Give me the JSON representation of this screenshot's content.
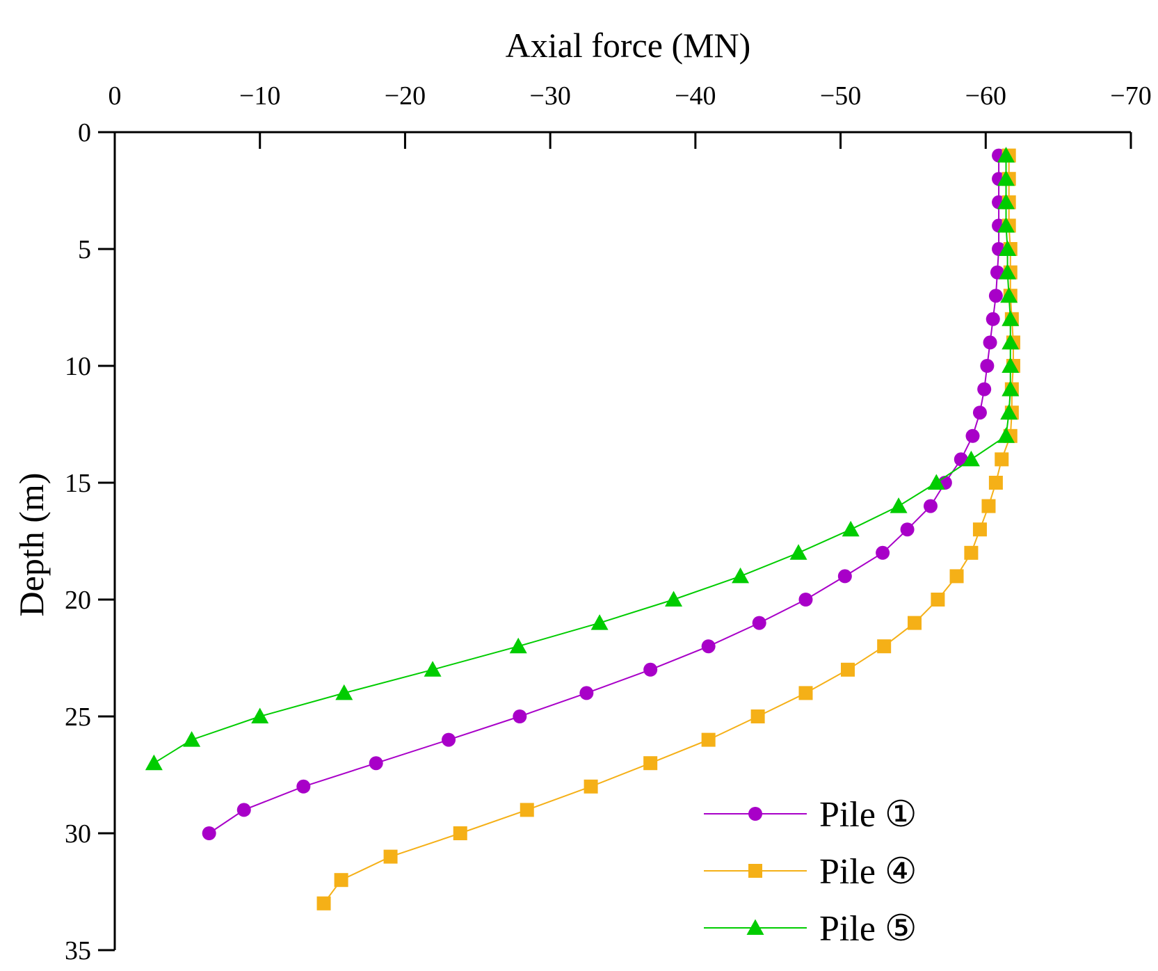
{
  "chart_data": {
    "type": "line",
    "title": "",
    "xlabel": "Axial force (MN)",
    "ylabel": "Depth (m)",
    "xlim": [
      0,
      -70
    ],
    "ylim": [
      0,
      35
    ],
    "x_axis_position": "top",
    "y_axis_inverted": true,
    "grid": false,
    "legend_position": "bottom-right",
    "x_ticks": [
      0,
      -10,
      -20,
      -30,
      -40,
      -50,
      -60,
      -70
    ],
    "x_tick_labels": [
      "0",
      "−10",
      "−20",
      "−30",
      "−40",
      "−50",
      "−60",
      "−70"
    ],
    "y_ticks": [
      0,
      5,
      10,
      15,
      20,
      25,
      30,
      35
    ],
    "y_tick_labels": [
      "0",
      "5",
      "10",
      "15",
      "20",
      "25",
      "30",
      "35"
    ],
    "series": [
      {
        "name": "Pile ①",
        "color": "#a800c8",
        "marker": "circle",
        "depth": [
          1,
          2,
          3,
          4,
          5,
          6,
          7,
          8,
          9,
          10,
          11,
          12,
          13,
          14,
          15,
          16,
          17,
          18,
          19,
          20,
          21,
          22,
          23,
          24,
          25,
          26,
          27,
          28,
          29,
          30
        ],
        "force": [
          -60.9,
          -60.9,
          -60.9,
          -60.9,
          -60.9,
          -60.8,
          -60.7,
          -60.5,
          -60.3,
          -60.1,
          -59.9,
          -59.6,
          -59.1,
          -58.3,
          -57.2,
          -56.2,
          -54.6,
          -52.9,
          -50.3,
          -47.6,
          -44.4,
          -40.9,
          -36.9,
          -32.5,
          -27.9,
          -23.0,
          -18.0,
          -13.0,
          -8.9,
          -6.5
        ]
      },
      {
        "name": "Pile ④",
        "color": "#f5b017",
        "marker": "square",
        "depth": [
          1,
          2,
          3,
          4,
          5,
          6,
          7,
          8,
          9,
          10,
          11,
          12,
          13,
          14,
          15,
          16,
          17,
          18,
          19,
          20,
          21,
          22,
          23,
          24,
          25,
          26,
          27,
          28,
          29,
          30,
          31,
          32,
          33
        ],
        "force": [
          -61.6,
          -61.6,
          -61.6,
          -61.6,
          -61.7,
          -61.7,
          -61.7,
          -61.8,
          -61.9,
          -61.9,
          -61.8,
          -61.8,
          -61.7,
          -61.1,
          -60.7,
          -60.2,
          -59.6,
          -59.0,
          -58.0,
          -56.7,
          -55.1,
          -53.0,
          -50.5,
          -47.6,
          -44.3,
          -40.9,
          -36.9,
          -32.8,
          -28.4,
          -23.8,
          -19.0,
          -15.6,
          -14.4
        ]
      },
      {
        "name": "Pile ⑤",
        "color": "#00cc00",
        "marker": "triangle",
        "depth": [
          1,
          2,
          3,
          4,
          5,
          6,
          7,
          8,
          9,
          10,
          11,
          12,
          13,
          14,
          15,
          16,
          17,
          18,
          19,
          20,
          21,
          22,
          23,
          24,
          25,
          26,
          27
        ],
        "force": [
          -61.4,
          -61.4,
          -61.4,
          -61.4,
          -61.5,
          -61.5,
          -61.6,
          -61.7,
          -61.7,
          -61.7,
          -61.7,
          -61.6,
          -61.4,
          -59.0,
          -56.6,
          -54.0,
          -50.7,
          -47.1,
          -43.1,
          -38.5,
          -33.4,
          -27.8,
          -21.9,
          -15.8,
          -10.0,
          -5.3,
          -2.7
        ]
      }
    ]
  }
}
